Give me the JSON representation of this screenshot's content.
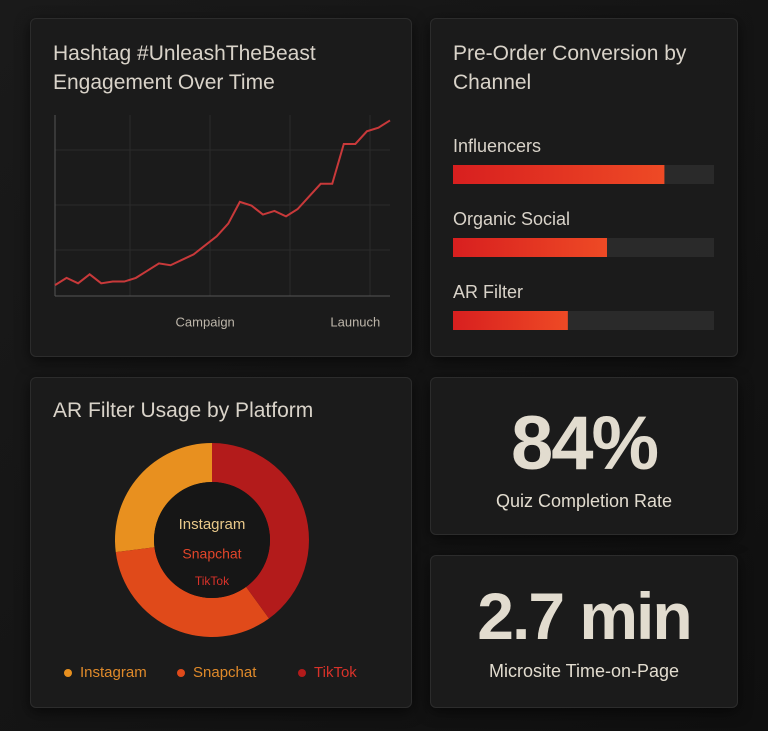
{
  "chart_data": [
    {
      "type": "line",
      "title": "Hashtag #UnleashTheBeast Engagement Over Time",
      "categories": [
        null,
        null,
        null,
        null,
        null,
        null,
        null,
        null,
        null,
        null,
        null,
        null,
        null,
        "Campaign",
        null,
        null,
        null,
        null,
        null,
        null,
        null,
        null,
        null,
        null,
        null,
        null,
        "Launuch",
        null,
        null,
        null
      ],
      "values": [
        6,
        10,
        7,
        12,
        7,
        8,
        8,
        10,
        14,
        18,
        17,
        20,
        23,
        28,
        33,
        40,
        52,
        50,
        45,
        47,
        44,
        48,
        55,
        62,
        62,
        84,
        84,
        91,
        93,
        97
      ],
      "color": "#c8393a",
      "ylim": [
        0,
        100
      ],
      "grid": true
    },
    {
      "type": "hbar",
      "title": "Pre-Order Conversion by Channel",
      "categories": [
        "Influencers",
        "Organic Social",
        "AR Filter"
      ],
      "values": [
        81,
        59,
        44
      ],
      "color": "#e0301e",
      "xlim": [
        0,
        100
      ]
    },
    {
      "type": "donut",
      "title": "AR Filter Usage by Platform",
      "categories": [
        "Instagram",
        "Snapchat",
        "TikTok"
      ],
      "values": [
        27,
        33,
        40
      ],
      "colors": [
        "#e8901f",
        "#e04a1a",
        "#b31b1b"
      ]
    }
  ],
  "kpis": [
    {
      "value": "84%",
      "label": "Quiz Completion Rate"
    },
    {
      "value": "2.7 min",
      "label": "Microsite Time-on-Page"
    }
  ]
}
